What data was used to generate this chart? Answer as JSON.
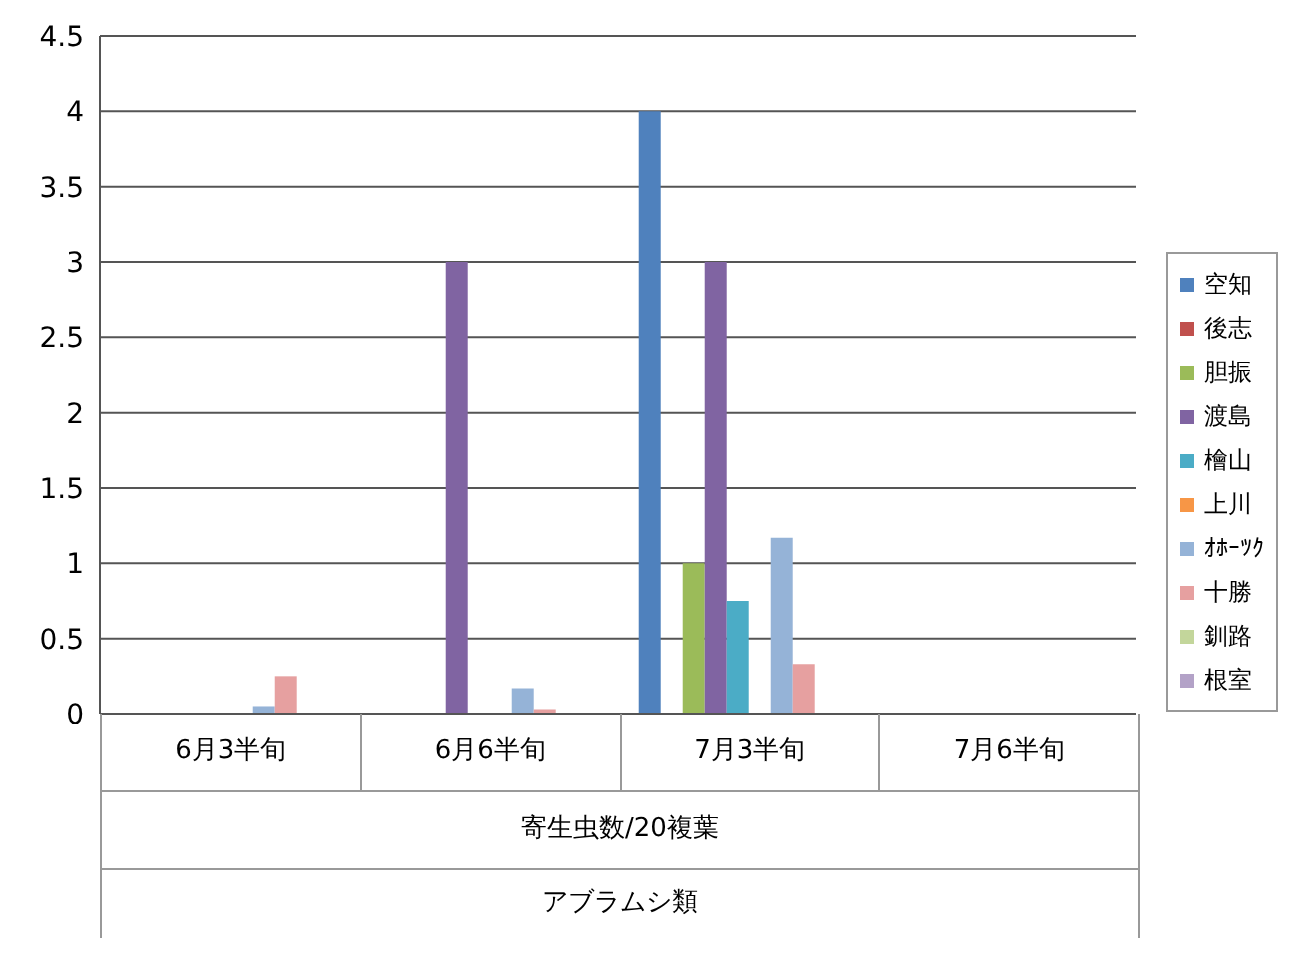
{
  "chart_data": {
    "type": "bar",
    "categories": [
      "6月3半旬",
      "6月6半旬",
      "7月3半旬",
      "7月6半旬"
    ],
    "xlabel": "寄生虫数/20複葉",
    "annotations": [
      "アブラムシ類"
    ],
    "series": [
      {
        "name": "空知",
        "color": "#4f81bd",
        "values": [
          0,
          0,
          4,
          0
        ]
      },
      {
        "name": "後志",
        "color": "#c0504d",
        "values": [
          0,
          0,
          0,
          0
        ]
      },
      {
        "name": "胆振",
        "color": "#9bbb59",
        "values": [
          0,
          0,
          1,
          0
        ]
      },
      {
        "name": "渡島",
        "color": "#8064a2",
        "values": [
          0,
          3,
          3,
          0
        ]
      },
      {
        "name": "檜山",
        "color": "#4bacc6",
        "values": [
          0,
          0,
          0.75,
          0
        ]
      },
      {
        "name": "上川",
        "color": "#f79646",
        "values": [
          0,
          0,
          0,
          0
        ]
      },
      {
        "name": "ｵﾎｰﾂｸ",
        "color": "#95b3d7",
        "values": [
          0.05,
          0.17,
          1.17,
          0
        ]
      },
      {
        "name": "十勝",
        "color": "#e6a0a0",
        "values": [
          0.25,
          0.03,
          0.33,
          0
        ]
      },
      {
        "name": "釧路",
        "color": "#c3d69b",
        "values": [
          0,
          0,
          0,
          0
        ]
      },
      {
        "name": "根室",
        "color": "#b3a2c7",
        "values": [
          0,
          0,
          0,
          0
        ]
      }
    ],
    "ylim": [
      0,
      4.5
    ],
    "yticks": [
      0,
      0.5,
      1,
      1.5,
      2,
      2.5,
      3,
      3.5,
      4,
      4.5
    ],
    "grid": "y",
    "legend": "right"
  }
}
